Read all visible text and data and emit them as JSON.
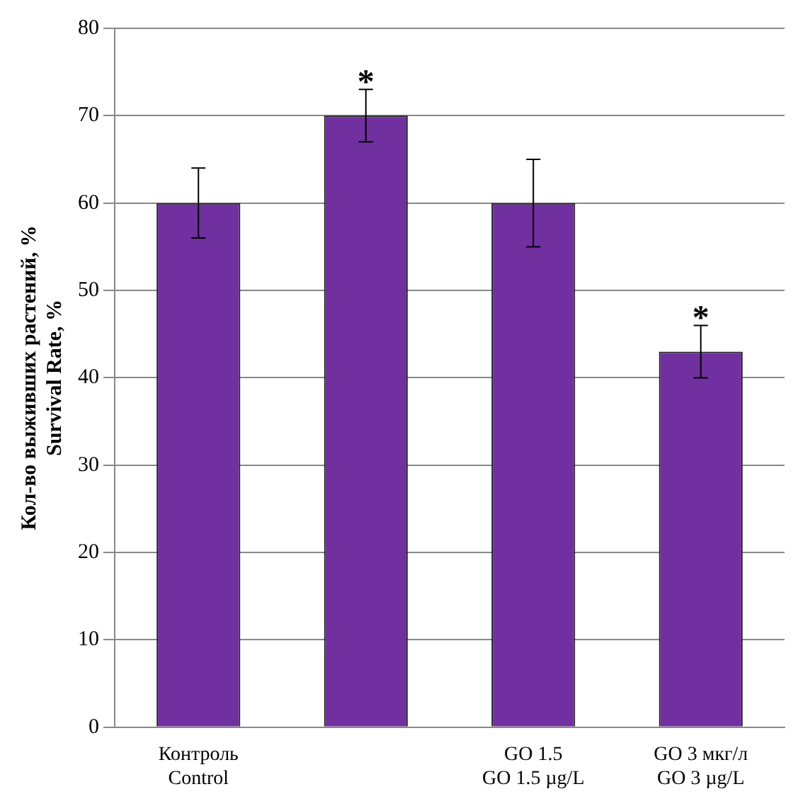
{
  "chart_data": {
    "type": "bar",
    "ylabel": "Кол-во выживших растений, %\nSurvival Rate, %",
    "categories": [
      "Контроль\nControl",
      null,
      "GO 1.5\nGO 1.5 µg/L",
      "GO 3 мкг/л\nGO 3 µg/L"
    ],
    "values": [
      60,
      70,
      60,
      43
    ],
    "errors": [
      [
        56,
        64
      ],
      [
        67,
        73
      ],
      [
        55,
        65
      ],
      [
        40,
        46
      ]
    ],
    "value_labels": [
      null,
      "*",
      null,
      "*"
    ],
    "color": "#7030a0",
    "ylim": [
      0,
      80
    ],
    "yticks": [
      0,
      10,
      20,
      30,
      40,
      50,
      60,
      70,
      80
    ],
    "grid": "y"
  }
}
